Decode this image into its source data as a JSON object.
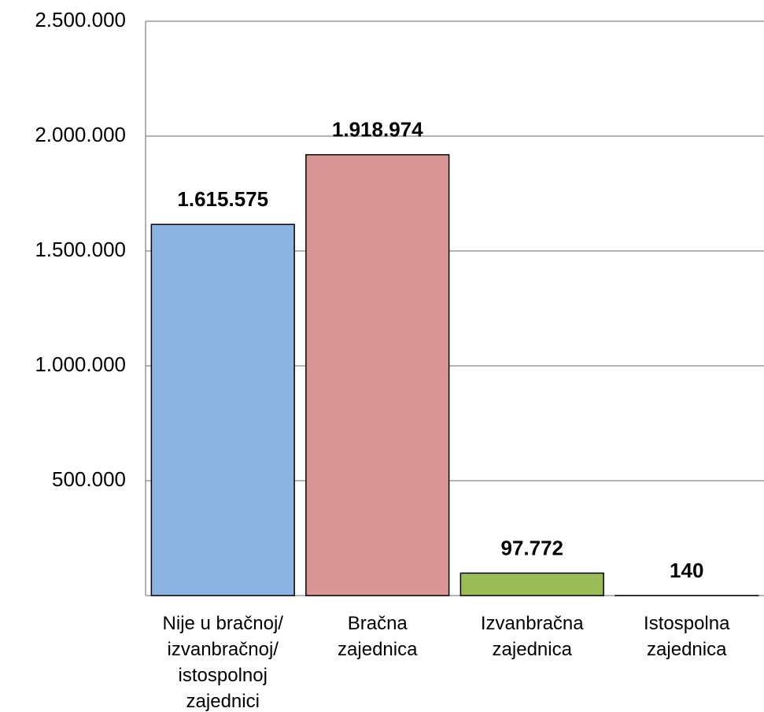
{
  "chart_data": {
    "type": "bar",
    "categories": [
      "Nije u bračnoj/\nizvanbračnoj/\nistospolnoj\nzajednici",
      "Bračna\nzajednica",
      "Izvanbračna\nzajednica",
      "Istospolna\nzajednica"
    ],
    "values": [
      1615575,
      1918974,
      97772,
      140
    ],
    "value_labels": [
      "1.615.575",
      "1.918.974",
      "97.772",
      "140"
    ],
    "colors": [
      "#8db3e2",
      "#d99694",
      "#9bbb59",
      "#8064a2"
    ],
    "ylim": [
      0,
      2500000
    ],
    "yticks": [
      {
        "value": 500000,
        "label": "500.000"
      },
      {
        "value": 1000000,
        "label": "1.000.000"
      },
      {
        "value": 1500000,
        "label": "1.500.000"
      },
      {
        "value": 2000000,
        "label": "2.000.000"
      },
      {
        "value": 2500000,
        "label": "2.500.000"
      }
    ],
    "grid": true
  }
}
